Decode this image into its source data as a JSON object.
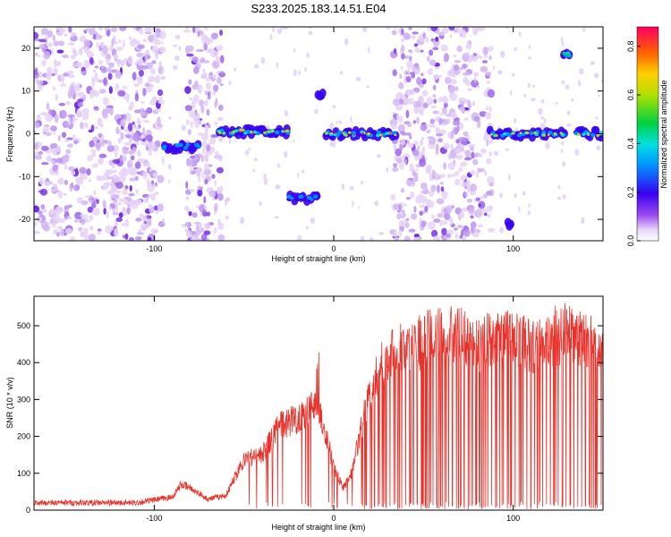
{
  "title": "S233.2025.183.14.51.E04",
  "chart_data": [
    {
      "type": "heatmap",
      "xlabel": "Height of straight line (km)",
      "ylabel": "Frequency (Hz)",
      "xlim": [
        -167,
        150
      ],
      "ylim": [
        -25,
        25
      ],
      "xticks": [
        -100,
        0,
        100
      ],
      "yticks": [
        -20,
        -10,
        0,
        10,
        20
      ],
      "colorbar": {
        "label": "Normalized spectral amplitude",
        "range": [
          0.0,
          0.88
        ],
        "ticks": [
          0.0,
          0.2,
          0.4,
          0.6,
          0.8
        ]
      },
      "background_noise_bands_km": [
        [
          -167,
          -95
        ],
        [
          -82,
          -62
        ],
        [
          33,
          88
        ]
      ],
      "features": [
        {
          "x": [
            -95,
            -75
          ],
          "freq_hz": -3,
          "amplitude": 0.3
        },
        {
          "x": [
            -65,
            -25
          ],
          "freq_hz": 0.5,
          "amplitude": 0.85
        },
        {
          "x": [
            -25,
            -8
          ],
          "freq_hz": -15,
          "amplitude": 0.35
        },
        {
          "x": [
            -10,
            -5
          ],
          "freq_hz": 9,
          "amplitude": 0.2
        },
        {
          "x": [
            -5,
            35
          ],
          "freq_hz": 0,
          "amplitude": 0.88
        },
        {
          "x": [
            97,
            99
          ],
          "freq_hz": -21,
          "amplitude": 0.2
        },
        {
          "x": [
            87,
            130
          ],
          "freq_hz": 0,
          "amplitude": 0.7
        },
        {
          "x": [
            128,
            132
          ],
          "freq_hz": 18.5,
          "amplitude": 0.5
        },
        {
          "x": [
            135,
            150
          ],
          "freq_hz": 0,
          "amplitude": 0.7
        }
      ]
    },
    {
      "type": "line",
      "xlabel": "Height of straight line (km)",
      "ylabel": "SNR (10 * v/v)",
      "xlim": [
        -167,
        150
      ],
      "ylim": [
        0,
        580
      ],
      "xticks": [
        -100,
        0,
        100
      ],
      "yticks": [
        0,
        100,
        200,
        300,
        400,
        500
      ],
      "color": "#e8332c",
      "series": [
        {
          "x": [
            -167,
            -140,
            -110,
            -90,
            -85,
            -80,
            -70,
            -60,
            -50,
            -40,
            -30,
            -20,
            -10,
            -5,
            0,
            5,
            10,
            20,
            30,
            40,
            50,
            60,
            70,
            80,
            90,
            100,
            110,
            120,
            130,
            140,
            150
          ],
          "values": [
            20,
            20,
            20,
            35,
            70,
            60,
            30,
            40,
            140,
            150,
            230,
            250,
            290,
            220,
            120,
            60,
            100,
            320,
            420,
            450,
            460,
            470,
            490,
            450,
            460,
            470,
            440,
            470,
            480,
            460,
            440
          ]
        }
      ]
    }
  ]
}
